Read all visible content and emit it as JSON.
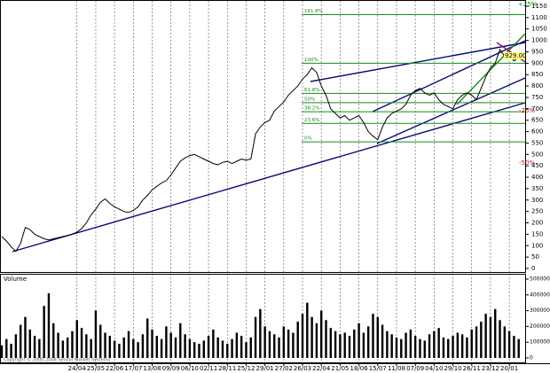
{
  "chart_data": [
    {
      "type": "line",
      "x": [
        0,
        1,
        2,
        3,
        4,
        5,
        6,
        7,
        8,
        9,
        10,
        11,
        12,
        13,
        14,
        15,
        16,
        17,
        18,
        19,
        20,
        21,
        22,
        23,
        24,
        25,
        26,
        27,
        28,
        29,
        30,
        31,
        32,
        33,
        34,
        35,
        36,
        37,
        38,
        39,
        40,
        41,
        42,
        43,
        44,
        45,
        46,
        47,
        48,
        49,
        50,
        51,
        52,
        53,
        54,
        55,
        56,
        57,
        58,
        59,
        60,
        61,
        62,
        63,
        64,
        65,
        66,
        67,
        68,
        69,
        70,
        71,
        72,
        73,
        74,
        75,
        76,
        77,
        78,
        79,
        80,
        81,
        82,
        83,
        84,
        85,
        86,
        87,
        88,
        89,
        90,
        91,
        92,
        93,
        94,
        95,
        96,
        97,
        98,
        99,
        100,
        101,
        102,
        103,
        104,
        105,
        106,
        107,
        108,
        109,
        110
      ],
      "series": [
        {
          "color": "#000000",
          "values": [
            140,
            120,
            95,
            75,
            110,
            180,
            170,
            150,
            140,
            130,
            125,
            130,
            135,
            140,
            145,
            150,
            160,
            175,
            200,
            235,
            260,
            290,
            305,
            285,
            270,
            260,
            250,
            245,
            255,
            270,
            300,
            320,
            345,
            360,
            375,
            385,
            410,
            440,
            470,
            485,
            495,
            500,
            490,
            480,
            470,
            460,
            455,
            465,
            470,
            460,
            470,
            480,
            475,
            480,
            590,
            620,
            640,
            650,
            690,
            710,
            730,
            760,
            780,
            800,
            830,
            850,
            880,
            860,
            800,
            760,
            700,
            680,
            660,
            670,
            650,
            660,
            670,
            640,
            600,
            580,
            565,
            620,
            660,
            680,
            690,
            700,
            720,
            760,
            780,
            790,
            770,
            760,
            770,
            740,
            720,
            710,
            700,
            740,
            760,
            770,
            760,
            740,
            790,
            840,
            880,
            900,
            960,
            930,
            940,
            910,
            925
          ]
        }
      ],
      "xlim": [
        0,
        111
      ],
      "ylim": [
        0,
        1150
      ],
      "yticks": [
        0,
        50,
        100,
        150,
        200,
        250,
        300,
        350,
        400,
        450,
        500,
        550,
        600,
        650,
        700,
        750,
        800,
        850,
        900,
        950,
        1000,
        1050,
        1100,
        1150
      ],
      "fib_levels": [
        {
          "label": "161.8%",
          "value": 1113
        },
        {
          "label": "100%",
          "value": 900
        },
        {
          "label": "61.8%",
          "value": 768
        },
        {
          "label": "50%",
          "value": 727
        },
        {
          "label": "38.2%",
          "value": 687
        },
        {
          "label": "23.6%",
          "value": 636
        },
        {
          "label": "0%",
          "value": 555
        }
      ],
      "fib_color": "#1a8a1a",
      "annotations": [
        "+25%",
        "929.00",
        "-25%",
        "-50%"
      ],
      "grid": true
    },
    {
      "type": "bar",
      "title": "Volume",
      "x": [
        0,
        1,
        2,
        3,
        4,
        5,
        6,
        7,
        8,
        9,
        10,
        11,
        12,
        13,
        14,
        15,
        16,
        17,
        18,
        19,
        20,
        21,
        22,
        23,
        24,
        25,
        26,
        27,
        28,
        29,
        30,
        31,
        32,
        33,
        34,
        35,
        36,
        37,
        38,
        39,
        40,
        41,
        42,
        43,
        44,
        45,
        46,
        47,
        48,
        49,
        50,
        51,
        52,
        53,
        54,
        55,
        56,
        57,
        58,
        59,
        60,
        61,
        62,
        63,
        64,
        65,
        66,
        67,
        68,
        69,
        70,
        71,
        72,
        73,
        74,
        75,
        76,
        77,
        78,
        79,
        80,
        81,
        82,
        83,
        84,
        85,
        86,
        87,
        88,
        89,
        90,
        91,
        92,
        93,
        94,
        95,
        96,
        97,
        98,
        99,
        100,
        101,
        102,
        103,
        104,
        105,
        106,
        107,
        108,
        109,
        110
      ],
      "values": [
        80000,
        120000,
        90000,
        150000,
        210000,
        260000,
        180000,
        140000,
        120000,
        330000,
        410000,
        220000,
        160000,
        110000,
        130000,
        170000,
        240000,
        190000,
        150000,
        120000,
        300000,
        210000,
        160000,
        140000,
        110000,
        90000,
        130000,
        170000,
        120000,
        100000,
        150000,
        250000,
        180000,
        140000,
        120000,
        200000,
        160000,
        130000,
        220000,
        150000,
        120000,
        100000,
        90000,
        110000,
        140000,
        180000,
        130000,
        110000,
        90000,
        120000,
        160000,
        140000,
        100000,
        130000,
        260000,
        310000,
        200000,
        170000,
        150000,
        130000,
        200000,
        180000,
        160000,
        230000,
        280000,
        350000,
        260000,
        220000,
        300000,
        240000,
        190000,
        170000,
        150000,
        160000,
        140000,
        180000,
        220000,
        160000,
        200000,
        280000,
        260000,
        210000,
        170000,
        150000,
        130000,
        120000,
        160000,
        180000,
        140000,
        120000,
        110000,
        150000,
        170000,
        190000,
        130000,
        120000,
        140000,
        160000,
        150000,
        130000,
        180000,
        200000,
        230000,
        280000,
        260000,
        310000,
        240000,
        200000,
        170000,
        140000,
        120000
      ],
      "color": "#000000",
      "ylim": [
        0,
        500000
      ],
      "yticks": [
        0,
        100000,
        200000,
        300000,
        400000,
        500000
      ],
      "xlim": [
        0,
        111
      ],
      "xticks": [
        {
          "value": 16,
          "label": "24/04"
        },
        {
          "value": 20,
          "label": "25/05"
        },
        {
          "value": 24,
          "label": "22/06"
        },
        {
          "value": 28,
          "label": "17/07"
        },
        {
          "value": 32,
          "label": "13/08"
        },
        {
          "value": 36,
          "label": "09/09"
        },
        {
          "value": 40,
          "label": "06/10"
        },
        {
          "value": 44,
          "label": "02/11"
        },
        {
          "value": 48,
          "label": "28/11"
        },
        {
          "value": 52,
          "label": "25/12"
        },
        {
          "value": 56,
          "label": "29/01"
        },
        {
          "value": 60,
          "label": "27/02"
        },
        {
          "value": 64,
          "label": "26/03"
        },
        {
          "value": 68,
          "label": "22/04"
        },
        {
          "value": 72,
          "label": "21/05"
        },
        {
          "value": 76,
          "label": "18/06"
        },
        {
          "value": 80,
          "label": "15/07"
        },
        {
          "value": 84,
          "label": "11/08"
        },
        {
          "value": 88,
          "label": "07/09"
        },
        {
          "value": 92,
          "label": "04/10"
        },
        {
          "value": 96,
          "label": "29/10"
        },
        {
          "value": 100,
          "label": "26/11"
        },
        {
          "value": 104,
          "label": "23/12"
        },
        {
          "value": 108,
          "label": "20/01"
        }
      ],
      "copyright": "Copyright © 2000-2008 Sensor Market Systems"
    }
  ]
}
